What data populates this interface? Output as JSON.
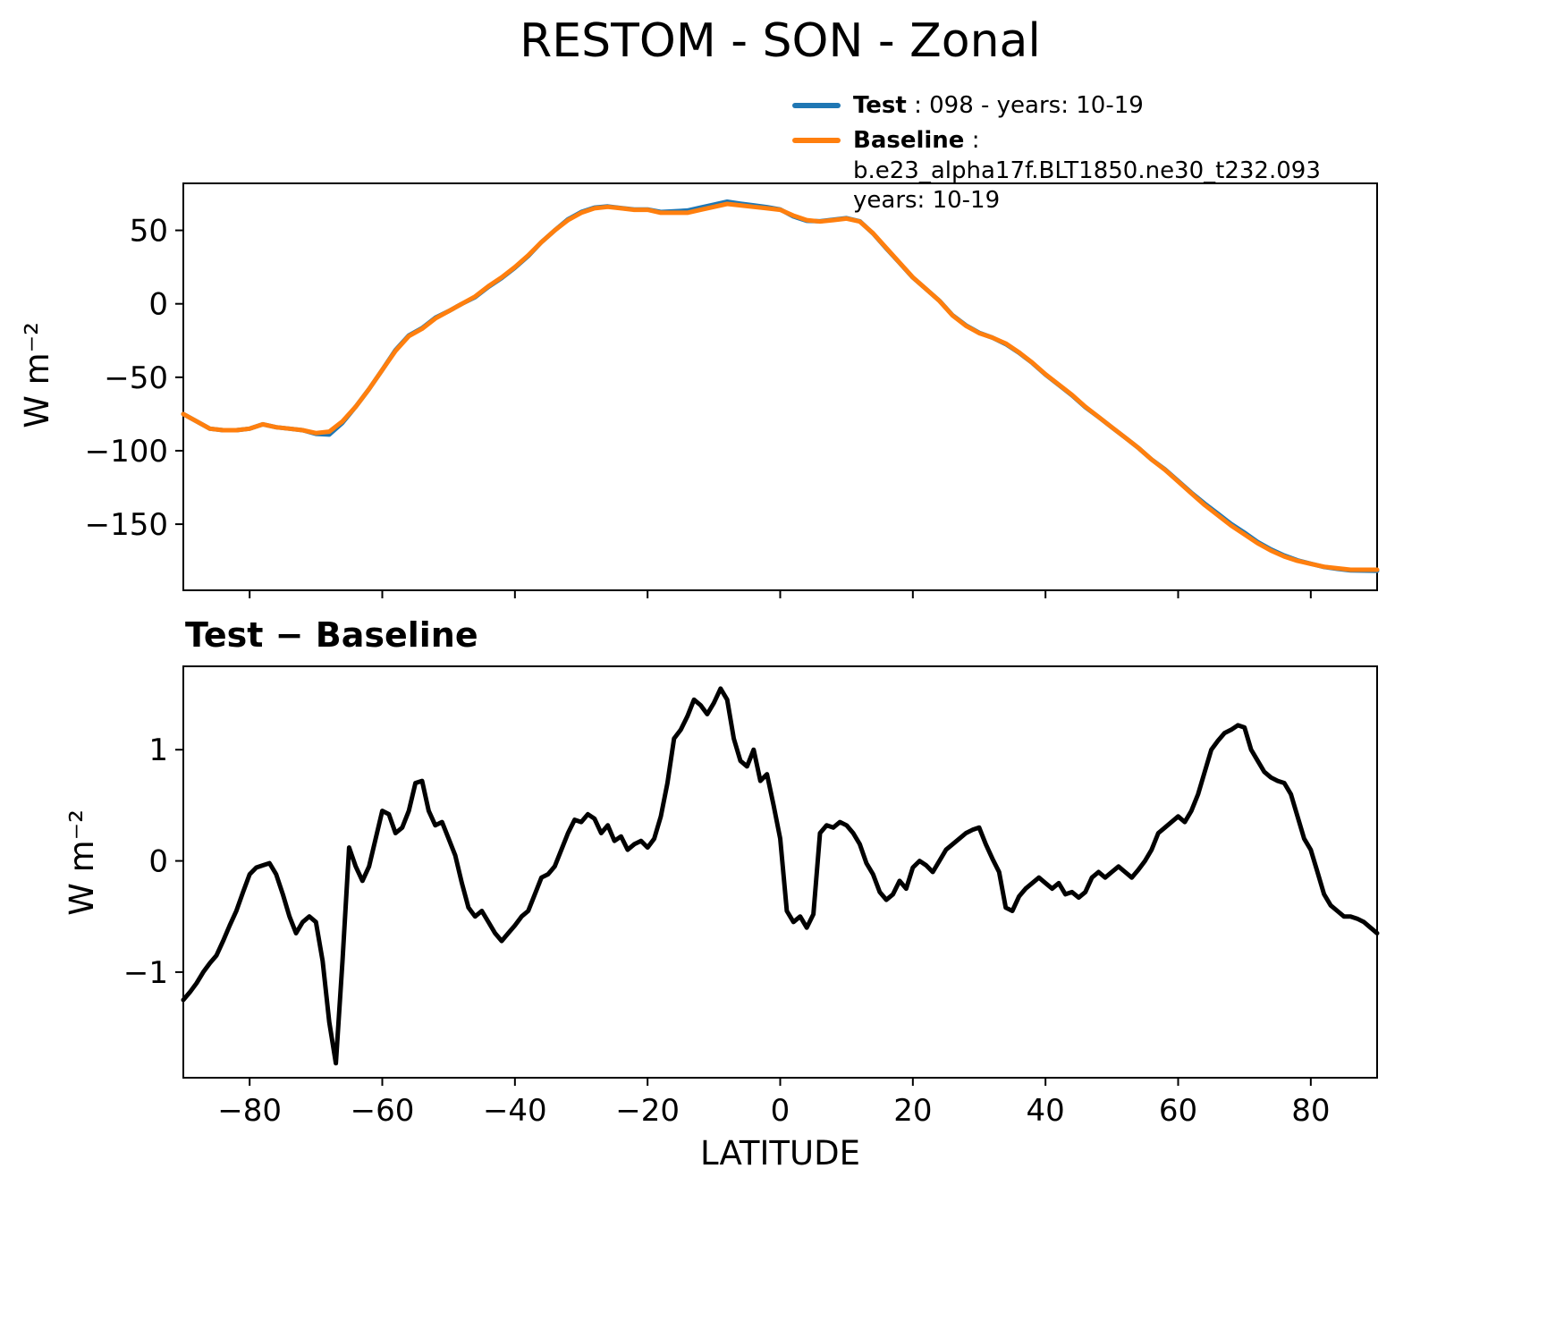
{
  "figure": {
    "title": "RESTOM - SON - Zonal"
  },
  "chart_data": [
    {
      "type": "line",
      "title": "RESTOM - SON - Zonal",
      "xlabel": "",
      "ylabel": "W m⁻²",
      "xlim": [
        -90,
        90
      ],
      "ylim": [
        -195,
        82
      ],
      "xticks": [
        -80,
        -60,
        -40,
        -20,
        0,
        20,
        40,
        60,
        80
      ],
      "yticks": [
        50,
        0,
        -50,
        -100,
        -150
      ],
      "grid": false,
      "legend_position": "upper-right-above-axes",
      "legend": [
        {
          "label": "Test",
          "text": " : 098 - years: 10-19",
          "color": "#1f77b4"
        },
        {
          "label": "Baseline",
          "text_line1": " : b.e23_alpha17f.BLT1850.ne30_t232.093",
          "text_line2": "years: 10-19",
          "color": "#ff7f0e"
        }
      ],
      "series": [
        {
          "name": "Test",
          "color": "#1f77b4",
          "x": [
            -90,
            -88,
            -86,
            -84,
            -82,
            -80,
            -78,
            -76,
            -74,
            -72,
            -70,
            -68,
            -66,
            -64,
            -62,
            -60,
            -58,
            -56,
            -54,
            -52,
            -50,
            -48,
            -46,
            -44,
            -42,
            -40,
            -38,
            -36,
            -34,
            -32,
            -30,
            -28,
            -26,
            -24,
            -22,
            -20,
            -18,
            -16,
            -14,
            -12,
            -10,
            -8,
            -6,
            -4,
            -2,
            0,
            2,
            4,
            6,
            8,
            10,
            12,
            14,
            16,
            18,
            20,
            22,
            24,
            26,
            28,
            30,
            32,
            34,
            36,
            38,
            40,
            42,
            44,
            46,
            48,
            50,
            52,
            54,
            56,
            58,
            60,
            62,
            64,
            66,
            68,
            70,
            72,
            74,
            76,
            78,
            80,
            82,
            84,
            86,
            88,
            90
          ],
          "y": [
            -75,
            -80,
            -85,
            -86,
            -86,
            -85,
            -82,
            -84,
            -85,
            -86,
            -88.5,
            -89,
            -81,
            -70,
            -58,
            -45,
            -31.5,
            -21.5,
            -16.5,
            -9.5,
            -5,
            0,
            4.5,
            11.5,
            17.5,
            24.5,
            32.5,
            42,
            50,
            57.5,
            62.5,
            65.5,
            66.3,
            65.2,
            64.2,
            64.2,
            62.5,
            63,
            63.5,
            65.5,
            67.5,
            69.5,
            68.2,
            67,
            65.8,
            64.2,
            59.5,
            56.5,
            56.2,
            57.3,
            58.3,
            56.2,
            47.9,
            37.7,
            27.8,
            17.9,
            10,
            2.1,
            -7.8,
            -14.7,
            -19.7,
            -23,
            -27.4,
            -33.3,
            -40.2,
            -48.2,
            -55.2,
            -62.3,
            -70.3,
            -77.1,
            -84.1,
            -91,
            -98.1,
            -106,
            -112.7,
            -120.6,
            -128.6,
            -136,
            -142.9,
            -149.8,
            -155.8,
            -162.1,
            -167.2,
            -171.3,
            -174.6,
            -176.9,
            -179.1,
            -180.4,
            -181.5,
            -181.6,
            -181.7
          ]
        },
        {
          "name": "Baseline",
          "color": "#ff7f0e",
          "x": [
            -90,
            -88,
            -86,
            -84,
            -82,
            -80,
            -78,
            -76,
            -74,
            -72,
            -70,
            -68,
            -66,
            -64,
            -62,
            -60,
            -58,
            -56,
            -54,
            -52,
            -50,
            -48,
            -46,
            -44,
            -42,
            -40,
            -38,
            -36,
            -34,
            -32,
            -30,
            -28,
            -26,
            -24,
            -22,
            -20,
            -18,
            -16,
            -14,
            -12,
            -10,
            -8,
            -6,
            -4,
            -2,
            0,
            2,
            4,
            6,
            8,
            10,
            12,
            14,
            16,
            18,
            20,
            22,
            24,
            26,
            28,
            30,
            32,
            34,
            36,
            38,
            40,
            42,
            44,
            46,
            48,
            50,
            52,
            54,
            56,
            58,
            60,
            62,
            64,
            66,
            68,
            70,
            72,
            74,
            76,
            78,
            80,
            82,
            84,
            86,
            88,
            90
          ],
          "y": [
            -75,
            -80,
            -85,
            -86,
            -86,
            -85,
            -82,
            -84,
            -85,
            -86,
            -88,
            -87,
            -80,
            -70,
            -58,
            -45,
            -32,
            -22,
            -17,
            -10,
            -5,
            0,
            5,
            12,
            18,
            25,
            33,
            42,
            50,
            57,
            62,
            65,
            66,
            65,
            64,
            64,
            62,
            62,
            62,
            64,
            66,
            68,
            67,
            66,
            65,
            64,
            60,
            57,
            56,
            57,
            58,
            56,
            48,
            38,
            28,
            18,
            10,
            2,
            -8,
            -15,
            -20,
            -23,
            -27,
            -33,
            -40,
            -48,
            -55,
            -62,
            -70,
            -77,
            -84,
            -91,
            -98,
            -106,
            -113,
            -121,
            -129,
            -137,
            -144,
            -151,
            -157,
            -163,
            -168,
            -172,
            -175,
            -177,
            -179,
            -180,
            -181,
            -181,
            -181
          ]
        }
      ]
    },
    {
      "type": "line",
      "title": "Test − Baseline",
      "xlabel": "LATITUDE",
      "ylabel": "W m⁻²",
      "xlim": [
        -90,
        90
      ],
      "ylim": [
        -1.95,
        1.75
      ],
      "xticks": [
        -80,
        -60,
        -40,
        -20,
        0,
        20,
        40,
        60,
        80
      ],
      "yticks": [
        1,
        0,
        -1
      ],
      "grid": false,
      "series": [
        {
          "name": "Test minus Baseline",
          "color": "#000000",
          "x": [
            -90,
            -89,
            -88,
            -87,
            -86,
            -85,
            -84,
            -83,
            -82,
            -81,
            -80,
            -79,
            -78,
            -77,
            -76,
            -75,
            -74,
            -73,
            -72,
            -71,
            -70,
            -69,
            -68,
            -67,
            -66,
            -65,
            -64,
            -63,
            -62,
            -61,
            -60,
            -59,
            -58,
            -57,
            -56,
            -55,
            -54,
            -53,
            -52,
            -51,
            -50,
            -49,
            -48,
            -47,
            -46,
            -45,
            -44,
            -43,
            -42,
            -41,
            -40,
            -39,
            -38,
            -37,
            -36,
            -35,
            -34,
            -33,
            -32,
            -31,
            -30,
            -29,
            -28,
            -27,
            -26,
            -25,
            -24,
            -23,
            -22,
            -21,
            -20,
            -19,
            -18,
            -17,
            -16,
            -15,
            -14,
            -13,
            -12,
            -11,
            -10,
            -9,
            -8,
            -7,
            -6,
            -5,
            -4,
            -3,
            -2,
            -1,
            0,
            1,
            2,
            3,
            4,
            5,
            6,
            7,
            8,
            9,
            10,
            11,
            12,
            13,
            14,
            15,
            16,
            17,
            18,
            19,
            20,
            21,
            22,
            23,
            24,
            25,
            26,
            27,
            28,
            29,
            30,
            31,
            32,
            33,
            34,
            35,
            36,
            37,
            38,
            39,
            40,
            41,
            42,
            43,
            44,
            45,
            46,
            47,
            48,
            49,
            50,
            51,
            52,
            53,
            54,
            55,
            56,
            57,
            58,
            59,
            60,
            61,
            62,
            63,
            64,
            65,
            66,
            67,
            68,
            69,
            70,
            71,
            72,
            73,
            74,
            75,
            76,
            77,
            78,
            79,
            80,
            81,
            82,
            83,
            84,
            85,
            86,
            87,
            88,
            89,
            90
          ],
          "y": [
            -1.25,
            -1.18,
            -1.1,
            -1.0,
            -0.92,
            -0.85,
            -0.72,
            -0.58,
            -0.45,
            -0.28,
            -0.12,
            -0.06,
            -0.04,
            -0.02,
            -0.12,
            -0.3,
            -0.5,
            -0.65,
            -0.55,
            -0.5,
            -0.55,
            -0.9,
            -1.45,
            -1.82,
            -0.9,
            0.12,
            -0.05,
            -0.18,
            -0.05,
            0.2,
            0.45,
            0.42,
            0.25,
            0.3,
            0.45,
            0.7,
            0.72,
            0.45,
            0.32,
            0.35,
            0.2,
            0.05,
            -0.2,
            -0.42,
            -0.5,
            -0.45,
            -0.55,
            -0.65,
            -0.72,
            -0.65,
            -0.58,
            -0.5,
            -0.45,
            -0.3,
            -0.15,
            -0.12,
            -0.05,
            0.1,
            0.25,
            0.37,
            0.35,
            0.42,
            0.38,
            0.25,
            0.32,
            0.18,
            0.22,
            0.1,
            0.15,
            0.18,
            0.12,
            0.2,
            0.4,
            0.7,
            1.1,
            1.18,
            1.3,
            1.45,
            1.4,
            1.32,
            1.42,
            1.55,
            1.45,
            1.1,
            0.9,
            0.85,
            1.0,
            0.72,
            0.78,
            0.5,
            0.2,
            -0.45,
            -0.55,
            -0.5,
            -0.6,
            -0.48,
            0.25,
            0.32,
            0.3,
            0.35,
            0.32,
            0.25,
            0.15,
            -0.02,
            -0.12,
            -0.28,
            -0.35,
            -0.3,
            -0.18,
            -0.25,
            -0.06,
            0.0,
            -0.04,
            -0.1,
            0.0,
            0.1,
            0.15,
            0.2,
            0.25,
            0.28,
            0.3,
            0.15,
            0.02,
            -0.1,
            -0.42,
            -0.45,
            -0.32,
            -0.25,
            -0.2,
            -0.15,
            -0.2,
            -0.25,
            -0.2,
            -0.3,
            -0.28,
            -0.33,
            -0.28,
            -0.15,
            -0.1,
            -0.15,
            -0.1,
            -0.05,
            -0.1,
            -0.15,
            -0.08,
            0.0,
            0.1,
            0.25,
            0.3,
            0.35,
            0.4,
            0.35,
            0.45,
            0.6,
            0.8,
            1.0,
            1.08,
            1.15,
            1.18,
            1.22,
            1.2,
            1.0,
            0.9,
            0.8,
            0.75,
            0.72,
            0.7,
            0.6,
            0.4,
            0.2,
            0.1,
            -0.1,
            -0.3,
            -0.4,
            -0.45,
            -0.5,
            -0.5,
            -0.52,
            -0.55,
            -0.6,
            -0.65
          ]
        }
      ]
    }
  ]
}
